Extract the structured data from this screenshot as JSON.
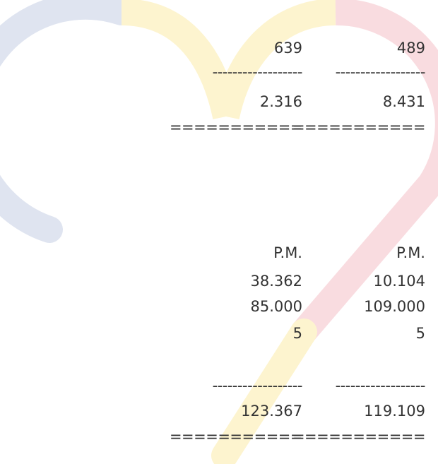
{
  "table": {
    "rows": [
      [
        "639",
        "489"
      ],
      [
        "------------------",
        "------------------"
      ],
      [
        "2.316",
        "8.431"
      ],
      [
        "===========",
        "==========="
      ],
      [
        "P.M.",
        "P.M."
      ],
      [
        "38.362",
        "10.104"
      ],
      [
        "85.000",
        "109.000"
      ],
      [
        "5",
        "5"
      ],
      [
        "------------------",
        "------------------"
      ],
      [
        "123.367",
        "119.109"
      ],
      [
        "===========",
        "==========="
      ]
    ]
  }
}
